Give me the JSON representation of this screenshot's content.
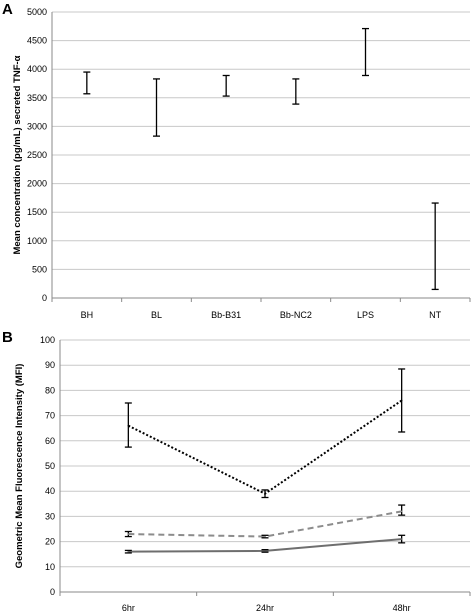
{
  "chart_data": [
    {
      "panel": "A",
      "type": "error-bar",
      "ylabel": "Mean concentration (pg/mL) secreted TNF-α",
      "xlabel": "",
      "ylim": [
        0,
        5000
      ],
      "yticks": [
        0,
        500,
        1000,
        1500,
        2000,
        2500,
        3000,
        3500,
        4000,
        4500,
        5000
      ],
      "grid": true,
      "categories": [
        "BH",
        "BL",
        "Bb-B31",
        "Bb-NC2",
        "LPS",
        "NT"
      ],
      "series": [
        {
          "values": [
            3760,
            3330,
            3710,
            3610,
            4300,
            900
          ],
          "lower": [
            3570,
            2830,
            3530,
            3390,
            3890,
            150
          ],
          "upper": [
            3950,
            3830,
            3890,
            3830,
            4710,
            1660
          ]
        }
      ]
    },
    {
      "panel": "B",
      "type": "line",
      "ylabel": "Geometric Mean Fluorescence Intensity (MFI)",
      "xlabel": "",
      "ylim": [
        0,
        100
      ],
      "yticks": [
        0,
        10,
        20,
        30,
        40,
        50,
        60,
        70,
        80,
        90,
        100
      ],
      "grid": true,
      "categories": [
        "6hr",
        "24hr",
        "48hr"
      ],
      "series": [
        {
          "style": "dotted",
          "color": "#000000",
          "values": [
            66,
            39,
            76
          ],
          "lower": [
            57.5,
            37.5,
            63.5
          ],
          "upper": [
            75,
            40.5,
            88.5
          ]
        },
        {
          "style": "dashed",
          "color": "#8c8c8c",
          "values": [
            23,
            22,
            32
          ],
          "lower": [
            22,
            21.5,
            30.5
          ],
          "upper": [
            24,
            22.5,
            34.5
          ]
        },
        {
          "style": "solid",
          "color": "#6e6e6e",
          "values": [
            16,
            16.3,
            21
          ],
          "lower": [
            15.5,
            15.8,
            19.5
          ],
          "upper": [
            16.5,
            16.8,
            22.5
          ]
        }
      ]
    }
  ]
}
